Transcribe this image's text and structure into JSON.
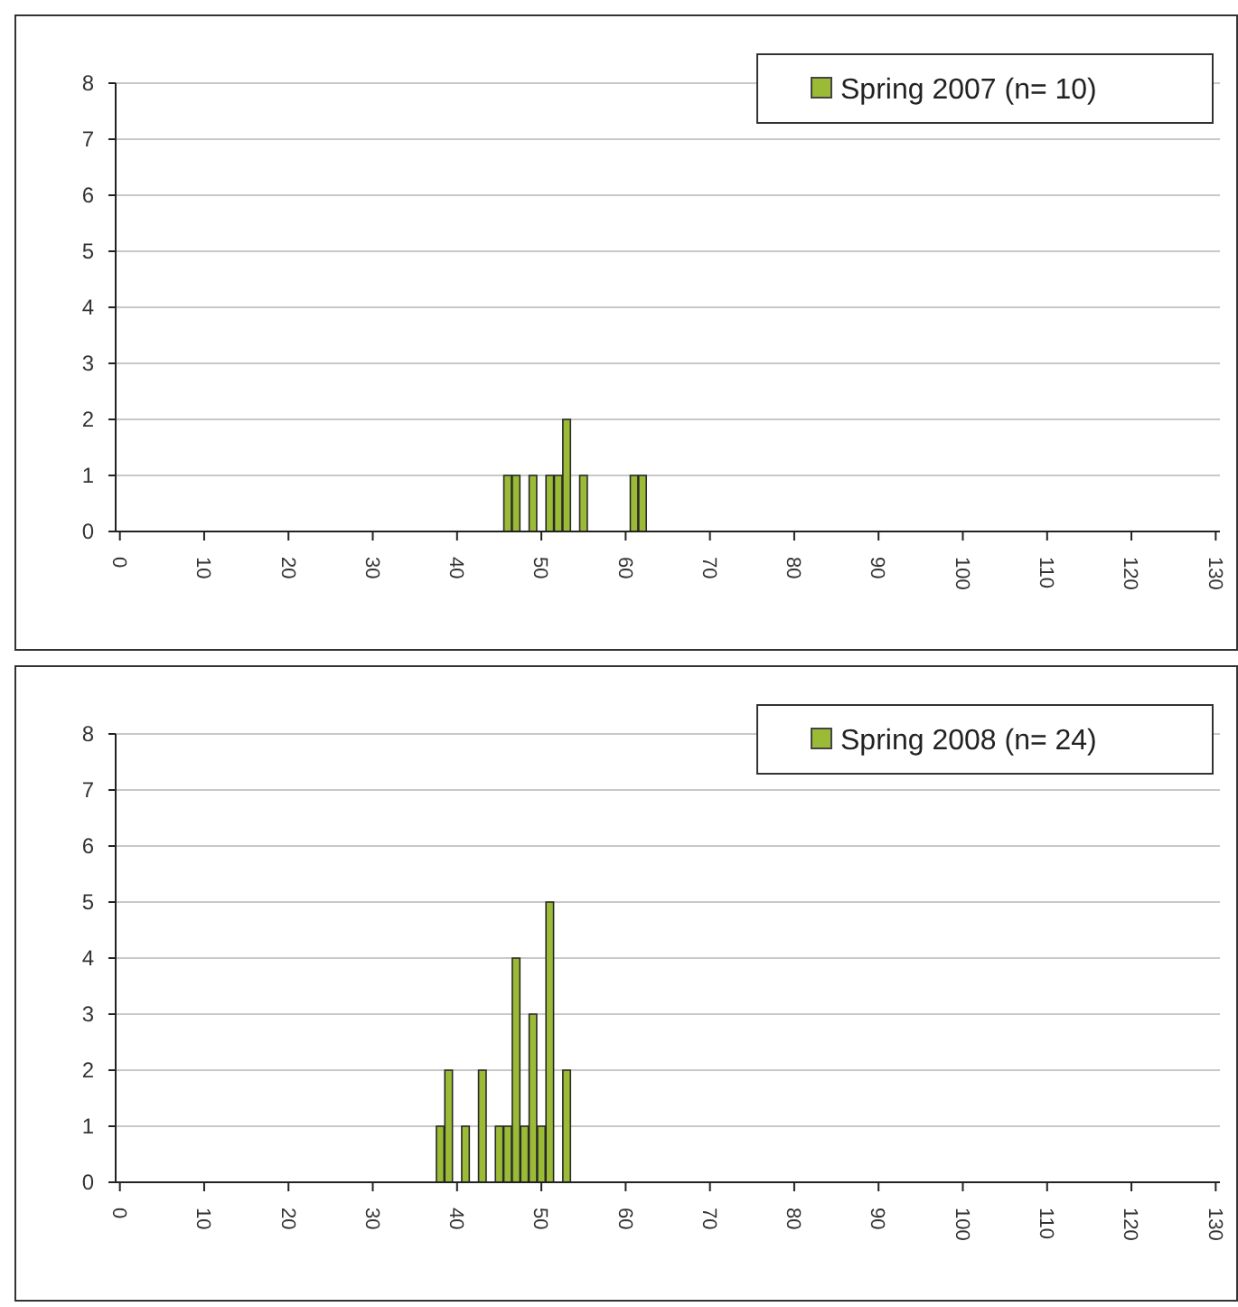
{
  "chart_data": [
    {
      "type": "bar",
      "x": [
        46,
        47,
        49,
        51,
        52,
        53,
        55,
        61,
        62
      ],
      "series": [
        {
          "name": "Spring 2007 (n= 10)",
          "color": "#9bbb36",
          "values": [
            1,
            1,
            1,
            1,
            1,
            2,
            1,
            1,
            1
          ]
        }
      ],
      "xlim": [
        -0.5,
        130.5
      ],
      "xticks": [
        0,
        10,
        20,
        30,
        40,
        50,
        60,
        70,
        80,
        90,
        100,
        110,
        120,
        130
      ],
      "ylim": [
        0,
        8
      ],
      "yticks": [
        0,
        1,
        2,
        3,
        4,
        5,
        6,
        7,
        8
      ],
      "grid": "y",
      "legend": "top right"
    },
    {
      "type": "bar",
      "x": [
        38,
        39,
        41,
        43,
        45,
        46,
        47,
        48,
        49,
        50,
        51,
        53
      ],
      "series": [
        {
          "name": "Spring 2008 (n= 24)",
          "color": "#9bbb36",
          "values": [
            1,
            2,
            1,
            2,
            1,
            1,
            4,
            1,
            3,
            1,
            5,
            2
          ]
        }
      ],
      "xlim": [
        -0.5,
        130.5
      ],
      "xticks": [
        0,
        10,
        20,
        30,
        40,
        50,
        60,
        70,
        80,
        90,
        100,
        110,
        120,
        130
      ],
      "ylim": [
        0,
        8
      ],
      "yticks": [
        0,
        1,
        2,
        3,
        4,
        5,
        6,
        7,
        8
      ],
      "grid": "y",
      "legend": "top right"
    }
  ]
}
